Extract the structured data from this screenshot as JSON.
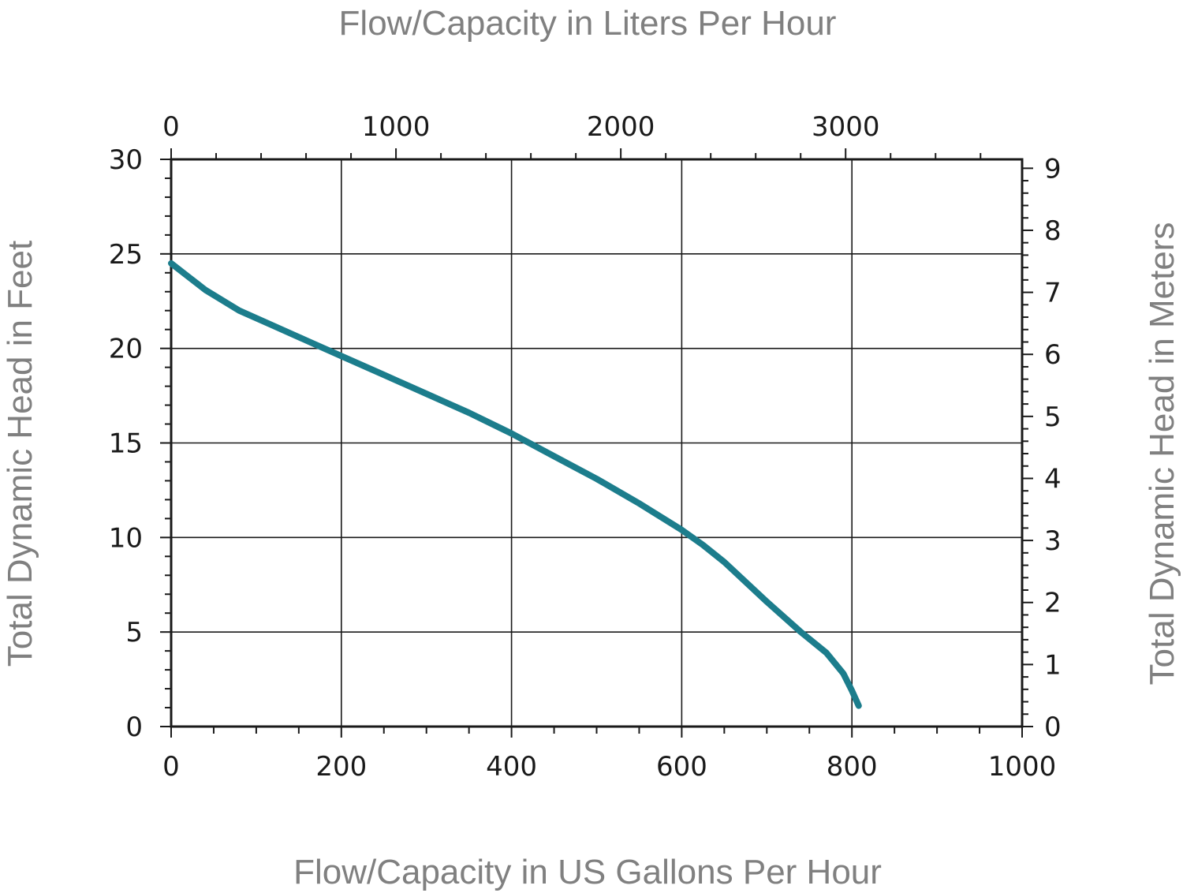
{
  "chart_data": {
    "type": "line",
    "title": "Flow/Capacity in Liters Per Hour",
    "xlabel": "Flow/Capacity in US Gallons Per Hour",
    "ylabel": "Total Dynamic Head in Feet",
    "y2label": "Total Dynamic Head in Meters",
    "xlim": [
      0,
      1000
    ],
    "ylim": [
      0,
      30
    ],
    "x2lim": [
      0,
      3785
    ],
    "y2lim": [
      0,
      9.144
    ],
    "x_ticks": [
      0,
      200,
      400,
      600,
      800,
      1000
    ],
    "y_ticks": [
      0,
      5,
      10,
      15,
      20,
      25,
      30
    ],
    "x2_ticks": [
      0,
      1000,
      2000,
      3000
    ],
    "y2_ticks": [
      0,
      1,
      2,
      3,
      4,
      5,
      6,
      7,
      8,
      9
    ],
    "grid": true,
    "line_color": "#1c7d8c",
    "series": [
      {
        "x": [
          0,
          20,
          40,
          80,
          120,
          160,
          200,
          250,
          300,
          350,
          400,
          450,
          500,
          550,
          600,
          625,
          650,
          700,
          740,
          770,
          790,
          800,
          808
        ],
        "y": [
          24.5,
          23.8,
          23.1,
          22.0,
          21.2,
          20.4,
          19.6,
          18.6,
          17.6,
          16.6,
          15.5,
          14.3,
          13.1,
          11.8,
          10.4,
          9.6,
          8.7,
          6.6,
          5.0,
          3.9,
          2.8,
          1.9,
          1.1
        ]
      }
    ]
  }
}
